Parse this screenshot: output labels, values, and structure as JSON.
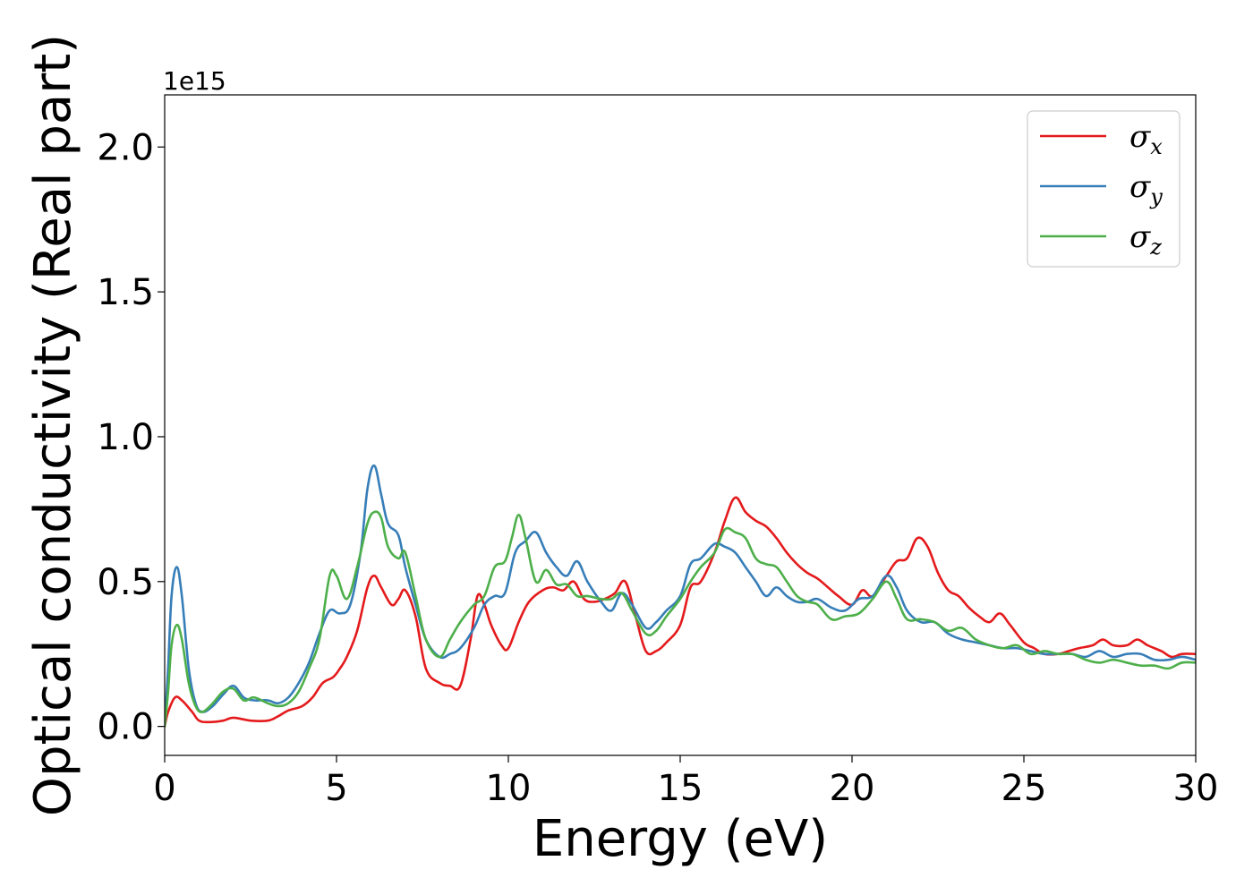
{
  "chart_data": {
    "type": "line",
    "title": "",
    "xlabel": "Energy (eV)",
    "ylabel": "Optical conductivity (Real part)",
    "y_offset_label": "1e15",
    "xlim": [
      0,
      30
    ],
    "ylim": [
      -0.1,
      2.18
    ],
    "xticks": [
      0,
      5,
      10,
      15,
      20,
      25,
      30
    ],
    "xtick_labels": [
      "0",
      "5",
      "10",
      "15",
      "20",
      "25",
      "30"
    ],
    "yticks": [
      0.0,
      0.5,
      1.0,
      1.5,
      2.0
    ],
    "ytick_labels": [
      "0.0",
      "0.5",
      "1.0",
      "1.5",
      "2.0"
    ],
    "grid": false,
    "legend_position": "top-right",
    "series": [
      {
        "name": "σx",
        "legend_symbol": "σ",
        "legend_subscript": "x",
        "color": "#e41a1c",
        "x": [
          0,
          0.1,
          0.3,
          0.5,
          0.8,
          1.0,
          1.3,
          1.7,
          2.0,
          2.5,
          3.0,
          3.3,
          3.6,
          4.0,
          4.3,
          4.6,
          4.9,
          5.1,
          5.3,
          5.6,
          5.9,
          6.1,
          6.3,
          6.6,
          6.8,
          7.0,
          7.3,
          7.6,
          8.0,
          8.3,
          8.6,
          8.9,
          9.1,
          9.3,
          9.5,
          9.8,
          10.0,
          10.3,
          10.6,
          11.0,
          11.3,
          11.6,
          11.9,
          12.2,
          12.5,
          12.8,
          13.1,
          13.4,
          13.7,
          14.0,
          14.3,
          14.6,
          15.0,
          15.3,
          15.6,
          16.0,
          16.3,
          16.6,
          16.9,
          17.2,
          17.5,
          17.8,
          18.1,
          18.4,
          18.7,
          19.0,
          19.3,
          19.6,
          20.0,
          20.3,
          20.6,
          21.0,
          21.3,
          21.6,
          21.9,
          22.2,
          22.5,
          22.8,
          23.1,
          23.4,
          23.7,
          24.0,
          24.3,
          24.6,
          25.0,
          25.3,
          25.6,
          26.0,
          26.3,
          26.6,
          27.0,
          27.3,
          27.6,
          28.0,
          28.3,
          28.6,
          29.0,
          29.3,
          29.6,
          30.0
        ],
        "y": [
          0.0,
          0.05,
          0.1,
          0.09,
          0.05,
          0.02,
          0.015,
          0.02,
          0.03,
          0.02,
          0.02,
          0.035,
          0.055,
          0.07,
          0.1,
          0.15,
          0.17,
          0.2,
          0.24,
          0.33,
          0.48,
          0.52,
          0.48,
          0.42,
          0.44,
          0.47,
          0.38,
          0.2,
          0.15,
          0.14,
          0.14,
          0.3,
          0.45,
          0.42,
          0.35,
          0.28,
          0.27,
          0.36,
          0.43,
          0.47,
          0.48,
          0.47,
          0.5,
          0.44,
          0.43,
          0.44,
          0.46,
          0.5,
          0.38,
          0.26,
          0.26,
          0.29,
          0.35,
          0.48,
          0.5,
          0.6,
          0.71,
          0.79,
          0.74,
          0.71,
          0.69,
          0.65,
          0.6,
          0.56,
          0.53,
          0.51,
          0.48,
          0.45,
          0.42,
          0.47,
          0.45,
          0.52,
          0.57,
          0.58,
          0.65,
          0.62,
          0.53,
          0.47,
          0.45,
          0.41,
          0.38,
          0.36,
          0.39,
          0.35,
          0.29,
          0.27,
          0.25,
          0.25,
          0.26,
          0.27,
          0.28,
          0.3,
          0.28,
          0.28,
          0.3,
          0.28,
          0.26,
          0.24,
          0.25,
          0.25
        ]
      },
      {
        "name": "σy",
        "legend_symbol": "σ",
        "legend_subscript": "y",
        "color": "#377eb8",
        "x": [
          0,
          0.1,
          0.2,
          0.35,
          0.5,
          0.7,
          0.9,
          1.1,
          1.4,
          1.7,
          2.0,
          2.3,
          2.6,
          3.0,
          3.3,
          3.6,
          3.9,
          4.2,
          4.5,
          4.8,
          5.1,
          5.4,
          5.7,
          5.9,
          6.1,
          6.3,
          6.5,
          6.8,
          7.0,
          7.3,
          7.6,
          8.0,
          8.3,
          8.6,
          9.0,
          9.3,
          9.6,
          9.9,
          10.2,
          10.5,
          10.8,
          11.1,
          11.4,
          11.7,
          12.0,
          12.3,
          12.7,
          13.0,
          13.3,
          13.6,
          14.0,
          14.3,
          14.6,
          15.0,
          15.3,
          15.6,
          16.0,
          16.3,
          16.6,
          16.9,
          17.2,
          17.5,
          17.8,
          18.1,
          18.4,
          18.7,
          19.0,
          19.4,
          19.8,
          20.2,
          20.6,
          21.0,
          21.3,
          21.6,
          22.0,
          22.4,
          22.8,
          23.2,
          23.6,
          24.0,
          24.4,
          24.8,
          25.2,
          25.6,
          26.0,
          26.4,
          26.8,
          27.2,
          27.6,
          28.0,
          28.4,
          28.8,
          29.2,
          29.6,
          30.0
        ],
        "y": [
          0.0,
          0.2,
          0.45,
          0.55,
          0.45,
          0.2,
          0.08,
          0.05,
          0.07,
          0.11,
          0.14,
          0.1,
          0.09,
          0.09,
          0.08,
          0.1,
          0.15,
          0.22,
          0.32,
          0.4,
          0.39,
          0.42,
          0.6,
          0.82,
          0.9,
          0.8,
          0.7,
          0.66,
          0.55,
          0.42,
          0.3,
          0.24,
          0.25,
          0.27,
          0.34,
          0.42,
          0.45,
          0.46,
          0.6,
          0.64,
          0.67,
          0.6,
          0.55,
          0.52,
          0.57,
          0.5,
          0.43,
          0.4,
          0.46,
          0.42,
          0.34,
          0.36,
          0.4,
          0.45,
          0.56,
          0.58,
          0.63,
          0.62,
          0.6,
          0.55,
          0.5,
          0.45,
          0.48,
          0.45,
          0.43,
          0.43,
          0.44,
          0.41,
          0.4,
          0.44,
          0.45,
          0.52,
          0.48,
          0.4,
          0.36,
          0.36,
          0.32,
          0.3,
          0.29,
          0.28,
          0.27,
          0.27,
          0.26,
          0.25,
          0.25,
          0.25,
          0.24,
          0.26,
          0.24,
          0.25,
          0.25,
          0.23,
          0.23,
          0.24,
          0.23
        ]
      },
      {
        "name": "σz",
        "legend_symbol": "σ",
        "legend_subscript": "z",
        "color": "#4daf4a",
        "x": [
          0,
          0.1,
          0.2,
          0.35,
          0.5,
          0.7,
          0.9,
          1.1,
          1.4,
          1.7,
          2.0,
          2.3,
          2.6,
          3.0,
          3.3,
          3.6,
          3.9,
          4.2,
          4.5,
          4.8,
          5.0,
          5.3,
          5.6,
          5.9,
          6.1,
          6.3,
          6.5,
          6.8,
          7.0,
          7.3,
          7.6,
          8.0,
          8.3,
          8.6,
          9.0,
          9.3,
          9.6,
          9.9,
          10.1,
          10.3,
          10.5,
          10.8,
          11.1,
          11.4,
          11.7,
          12.0,
          12.3,
          12.7,
          13.0,
          13.3,
          13.6,
          14.0,
          14.3,
          14.6,
          15.0,
          15.3,
          15.6,
          16.0,
          16.3,
          16.6,
          16.9,
          17.2,
          17.5,
          17.8,
          18.1,
          18.4,
          18.7,
          19.0,
          19.4,
          19.8,
          20.2,
          20.6,
          21.0,
          21.3,
          21.6,
          22.0,
          22.4,
          22.8,
          23.2,
          23.6,
          24.0,
          24.4,
          24.8,
          25.2,
          25.6,
          26.0,
          26.4,
          26.8,
          27.2,
          27.6,
          28.0,
          28.4,
          28.8,
          29.2,
          29.6,
          30.0
        ],
        "y": [
          0.0,
          0.12,
          0.28,
          0.35,
          0.3,
          0.15,
          0.07,
          0.05,
          0.08,
          0.12,
          0.13,
          0.09,
          0.1,
          0.08,
          0.07,
          0.08,
          0.12,
          0.2,
          0.3,
          0.52,
          0.52,
          0.44,
          0.55,
          0.7,
          0.74,
          0.72,
          0.62,
          0.58,
          0.6,
          0.45,
          0.3,
          0.24,
          0.3,
          0.36,
          0.42,
          0.45,
          0.55,
          0.57,
          0.65,
          0.73,
          0.65,
          0.5,
          0.54,
          0.49,
          0.49,
          0.45,
          0.45,
          0.44,
          0.44,
          0.46,
          0.4,
          0.32,
          0.33,
          0.38,
          0.44,
          0.5,
          0.55,
          0.6,
          0.68,
          0.67,
          0.65,
          0.58,
          0.56,
          0.55,
          0.5,
          0.45,
          0.43,
          0.42,
          0.37,
          0.38,
          0.39,
          0.44,
          0.5,
          0.44,
          0.37,
          0.37,
          0.36,
          0.33,
          0.34,
          0.3,
          0.28,
          0.27,
          0.28,
          0.25,
          0.26,
          0.25,
          0.25,
          0.23,
          0.22,
          0.23,
          0.22,
          0.21,
          0.21,
          0.2,
          0.22,
          0.22
        ]
      }
    ]
  }
}
